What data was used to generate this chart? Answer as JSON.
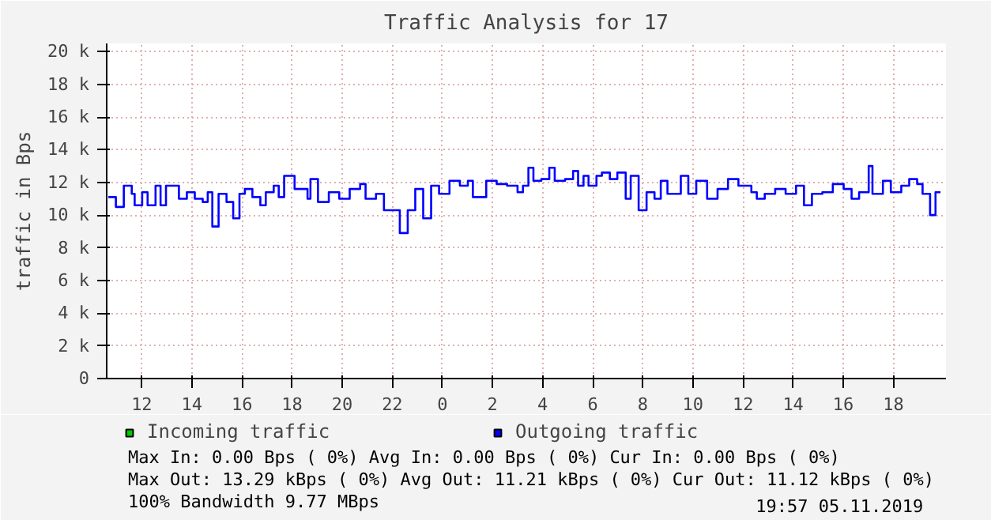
{
  "chart_data": {
    "type": "step",
    "title": "Traffic Analysis for 17",
    "ylabel": "traffic in Bps",
    "x": [
      "2019-11-04T10:40",
      "2019-11-04T10:58",
      "2019-11-04T11:17",
      "2019-11-04T11:36",
      "2019-11-04T11:43",
      "2019-11-04T12:01",
      "2019-11-04T12:14",
      "2019-11-04T12:33",
      "2019-11-04T12:45",
      "2019-11-04T12:58",
      "2019-11-04T13:17",
      "2019-11-04T13:29",
      "2019-11-04T13:48",
      "2019-11-04T14:07",
      "2019-11-04T14:26",
      "2019-11-04T14:38",
      "2019-11-04T14:49",
      "2019-11-04T15:04",
      "2019-11-04T15:23",
      "2019-11-04T15:39",
      "2019-11-04T15:54",
      "2019-11-04T16:07",
      "2019-11-04T16:25",
      "2019-11-04T16:44",
      "2019-11-04T16:57",
      "2019-11-04T17:16",
      "2019-11-04T17:28",
      "2019-11-04T17:41",
      "2019-11-04T18:06",
      "2019-11-04T18:37",
      "2019-11-04T18:44",
      "2019-11-04T19:02",
      "2019-11-04T19:28",
      "2019-11-04T19:53",
      "2019-11-04T20:18",
      "2019-11-04T20:43",
      "2019-11-04T20:56",
      "2019-11-04T21:21",
      "2019-11-04T21:40",
      "2019-11-04T21:59",
      "2019-11-04T22:18",
      "2019-11-04T22:37",
      "2019-11-04T22:55",
      "2019-11-04T23:14",
      "2019-11-04T23:33",
      "2019-11-04T23:52",
      "2019-11-05T00:17",
      "2019-11-05T00:42",
      "2019-11-05T01:01",
      "2019-11-05T01:13",
      "2019-11-05T01:45",
      "2019-11-05T02:10",
      "2019-11-05T02:35",
      "2019-11-05T03:00",
      "2019-11-05T03:13",
      "2019-11-05T03:26",
      "2019-11-05T03:38",
      "2019-11-05T03:57",
      "2019-11-05T04:16",
      "2019-11-05T04:29",
      "2019-11-05T04:54",
      "2019-11-05T05:13",
      "2019-11-05T05:25",
      "2019-11-05T05:38",
      "2019-11-05T05:50",
      "2019-11-05T06:09",
      "2019-11-05T06:22",
      "2019-11-05T06:41",
      "2019-11-05T06:59",
      "2019-11-05T07:19",
      "2019-11-05T07:31",
      "2019-11-05T07:50",
      "2019-11-05T08:09",
      "2019-11-05T08:28",
      "2019-11-05T08:43",
      "2019-11-05T08:59",
      "2019-11-05T09:31",
      "2019-11-05T09:49",
      "2019-11-05T10:08",
      "2019-11-05T10:34",
      "2019-11-05T10:59",
      "2019-11-05T11:24",
      "2019-11-05T11:49",
      "2019-11-05T12:20",
      "2019-11-05T12:33",
      "2019-11-05T12:52",
      "2019-11-05T13:17",
      "2019-11-05T13:42",
      "2019-11-05T14:07",
      "2019-11-05T14:26",
      "2019-11-05T14:45",
      "2019-11-05T15:10",
      "2019-11-05T15:35",
      "2019-11-05T16:01",
      "2019-11-05T16:20",
      "2019-11-05T16:38",
      "2019-11-05T17:01",
      "2019-11-05T17:10",
      "2019-11-05T17:35",
      "2019-11-05T17:54",
      "2019-11-05T18:19",
      "2019-11-05T18:38",
      "2019-11-05T18:57",
      "2019-11-05T19:10",
      "2019-11-05T19:28",
      "2019-11-05T19:41",
      "2019-11-05T19:53"
    ],
    "series": [
      {
        "name": "Incoming traffic",
        "color": "#00cc00",
        "values": [
          null,
          null,
          null,
          null,
          null,
          null,
          null,
          null,
          null,
          null,
          null,
          null,
          null,
          null,
          null,
          null,
          null,
          null,
          null,
          null,
          null,
          null,
          null,
          null,
          null,
          null,
          null,
          null,
          null,
          null,
          null,
          null,
          null,
          null,
          null,
          null,
          null,
          null,
          null,
          null,
          null,
          null,
          null,
          null,
          null,
          null,
          null,
          null,
          null,
          null,
          null,
          null,
          null,
          null,
          null,
          null,
          null,
          null,
          null,
          null,
          null,
          null,
          null,
          null,
          null,
          null,
          null,
          null,
          null,
          null,
          null,
          null,
          null,
          null,
          null,
          null,
          null,
          null,
          null,
          null,
          null,
          null,
          null,
          null,
          null,
          null,
          null,
          null,
          null,
          null,
          null,
          null,
          null,
          null,
          null,
          null,
          null,
          null,
          null,
          null,
          null,
          null,
          null,
          null,
          null,
          null,
          null
        ]
      },
      {
        "name": "Outgoing traffic",
        "color": "#0000ff",
        "values": [
          11100,
          10500,
          11800,
          11300,
          10600,
          11400,
          10600,
          11800,
          10600,
          11800,
          11800,
          11000,
          11400,
          11000,
          10800,
          11400,
          9300,
          11300,
          10800,
          9800,
          11300,
          11600,
          11100,
          10600,
          11400,
          11800,
          11100,
          12400,
          11600,
          11000,
          12200,
          10800,
          11400,
          11000,
          11600,
          11900,
          11000,
          11300,
          10300,
          10300,
          8900,
          10300,
          11600,
          9800,
          11800,
          11300,
          12100,
          11800,
          12100,
          11100,
          12100,
          11900,
          11800,
          11400,
          11800,
          12900,
          12100,
          12200,
          12900,
          12100,
          12200,
          12700,
          11800,
          12400,
          11800,
          12400,
          12600,
          12200,
          12600,
          11000,
          12400,
          10300,
          11400,
          11000,
          12100,
          11300,
          12400,
          11300,
          12100,
          11000,
          11600,
          12200,
          11800,
          11400,
          11000,
          11300,
          11600,
          11300,
          11800,
          10600,
          11300,
          11400,
          11900,
          11600,
          11000,
          11400,
          13000,
          11300,
          12100,
          11400,
          11800,
          12200,
          11900,
          11300,
          10000,
          11400,
          11400
        ]
      }
    ],
    "xlim": [
      "2019-11-04T10:36",
      "2019-11-05T20:06"
    ],
    "xticks": [
      {
        "value": "2019-11-04T12:00",
        "label": "12"
      },
      {
        "value": "2019-11-04T14:00",
        "label": "14"
      },
      {
        "value": "2019-11-04T16:00",
        "label": "16"
      },
      {
        "value": "2019-11-04T18:00",
        "label": "18"
      },
      {
        "value": "2019-11-04T20:00",
        "label": "20"
      },
      {
        "value": "2019-11-04T22:00",
        "label": "22"
      },
      {
        "value": "2019-11-05T00:00",
        "label": "0"
      },
      {
        "value": "2019-11-05T02:00",
        "label": "2"
      },
      {
        "value": "2019-11-05T04:00",
        "label": "4"
      },
      {
        "value": "2019-11-05T06:00",
        "label": "6"
      },
      {
        "value": "2019-11-05T08:00",
        "label": "8"
      },
      {
        "value": "2019-11-05T10:00",
        "label": "10"
      },
      {
        "value": "2019-11-05T12:00",
        "label": "12"
      },
      {
        "value": "2019-11-05T14:00",
        "label": "14"
      },
      {
        "value": "2019-11-05T16:00",
        "label": "16"
      },
      {
        "value": "2019-11-05T18:00",
        "label": "18"
      }
    ],
    "ylim": [
      0,
      20500
    ],
    "yticks": [
      0,
      {
        "value": 2000,
        "label": "2 k"
      },
      {
        "value": 4000,
        "label": "4 k"
      },
      {
        "value": 6000,
        "label": "6 k"
      },
      {
        "value": 8000,
        "label": "8 k"
      },
      {
        "value": 10000,
        "label": "10 k"
      },
      {
        "value": 12000,
        "label": "12 k"
      },
      {
        "value": 14000,
        "label": "14 k"
      },
      {
        "value": 16000,
        "label": "16 k"
      },
      {
        "value": 18000,
        "label": "18 k"
      },
      {
        "value": 20000,
        "label": "20 k"
      }
    ],
    "grid": true,
    "legend": "bottom",
    "annotations": [
      "Max In:   0.00  Bps ( 0%)  Avg In:   0.00  Bps ( 0%)  Cur In:   0.00  Bps ( 0%)",
      "Max Out: 13.29 kBps ( 0%)  Avg Out: 11.21 kBps ( 0%)  Cur Out: 11.12 kBps ( 0%)",
      "100% Bandwidth 9.77 MBps",
      "19:57 05.11.2019"
    ]
  }
}
